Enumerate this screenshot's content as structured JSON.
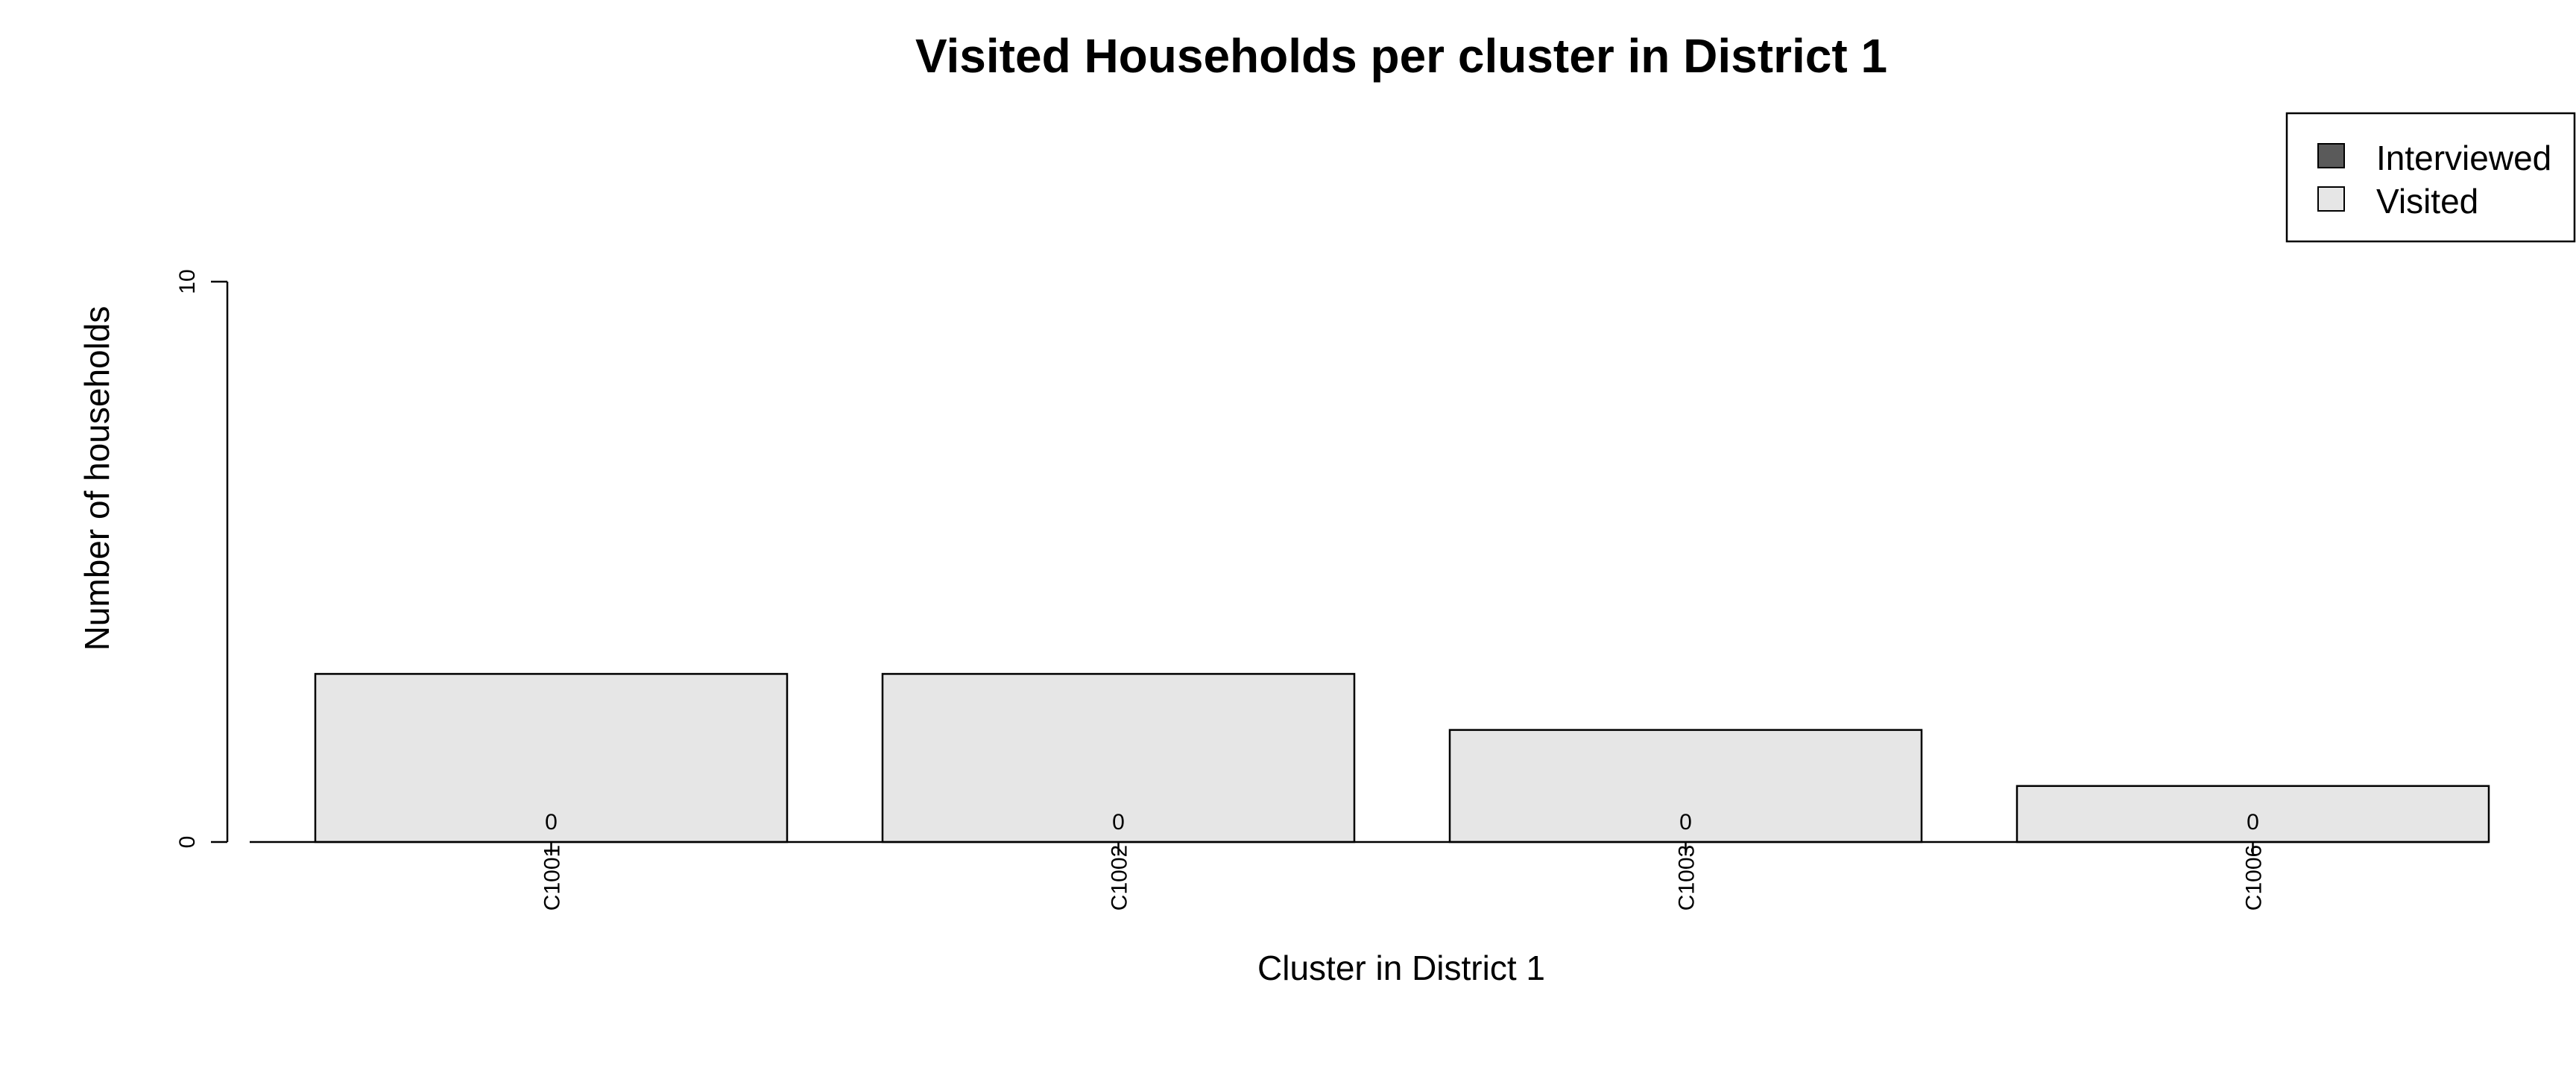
{
  "chart_data": {
    "type": "bar",
    "title": "Visited Households per cluster in District 1",
    "xlabel": "Cluster in District 1",
    "ylabel": "Number of households",
    "categories": [
      "C1001",
      "C1002",
      "C1003",
      "C1006"
    ],
    "series": [
      {
        "name": "Interviewed",
        "values": [
          0,
          0,
          0,
          0
        ],
        "color": "#5a5a5a"
      },
      {
        "name": "Visited",
        "values": [
          3,
          3,
          2,
          1
        ],
        "color": "#e6e6e6"
      }
    ],
    "data_labels": [
      "0",
      "0",
      "0",
      "0"
    ],
    "yticks": [
      0,
      10
    ],
    "ylim": [
      0,
      10
    ],
    "grid": false,
    "legend_position": "top-right",
    "stacked": "overlaid"
  }
}
